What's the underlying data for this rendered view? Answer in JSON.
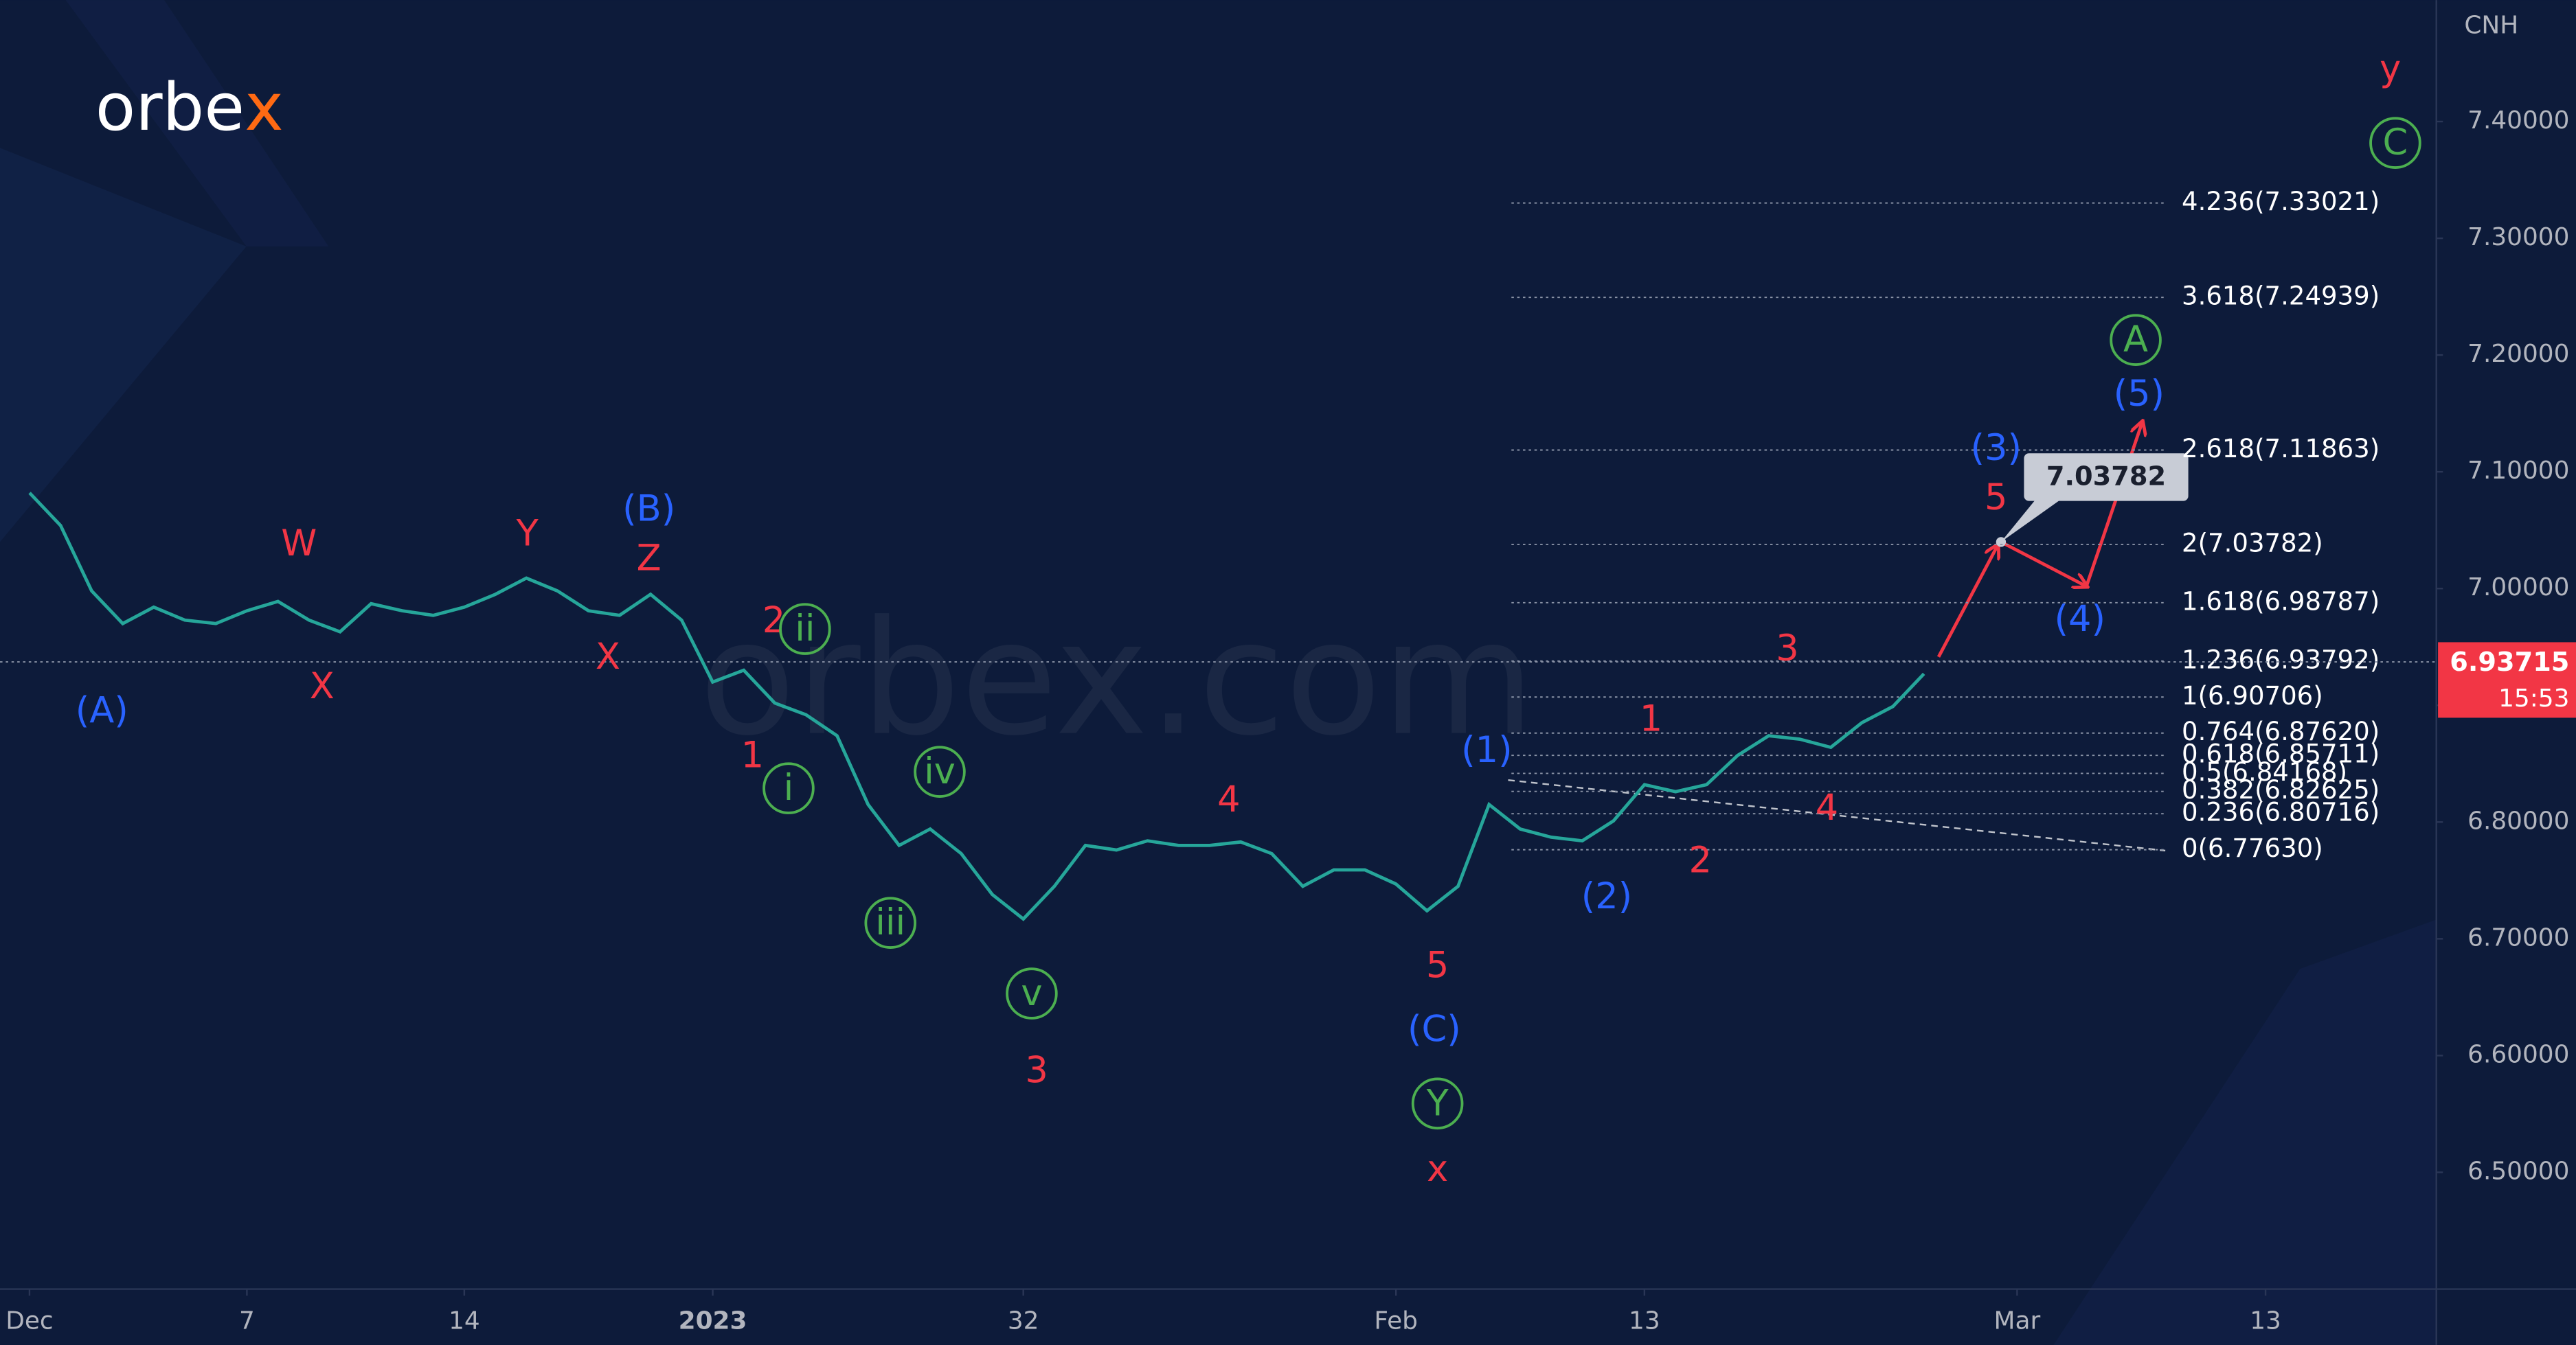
{
  "chart_data": {
    "type": "line",
    "logo": [
      "orbe",
      "x"
    ],
    "watermark": "orbex.com",
    "currency": "CNH",
    "color": "#26a69a",
    "x": [
      0,
      1,
      2,
      3,
      4,
      5,
      6,
      7,
      8,
      9,
      10,
      11,
      12,
      13,
      14,
      15,
      16,
      17,
      18,
      19,
      20,
      21,
      22,
      23,
      24,
      25,
      26,
      27,
      28,
      29,
      30,
      31,
      32,
      33,
      34,
      35,
      36,
      37,
      38,
      39,
      40,
      41,
      42,
      43,
      44,
      45,
      46,
      47,
      48,
      49,
      50,
      51,
      52,
      53,
      54,
      55,
      56,
      57,
      58,
      59,
      60,
      61
    ],
    "values": [
      7.082,
      7.054,
      6.998,
      6.97,
      6.984,
      6.973,
      6.97,
      6.981,
      6.989,
      6.973,
      6.963,
      6.987,
      6.981,
      6.977,
      6.984,
      6.995,
      7.009,
      6.998,
      6.981,
      6.977,
      6.995,
      6.973,
      6.92,
      6.93,
      6.902,
      6.892,
      6.874,
      6.815,
      6.78,
      6.794,
      6.773,
      6.738,
      6.717,
      6.745,
      6.78,
      6.776,
      6.784,
      6.78,
      6.78,
      6.783,
      6.773,
      6.745,
      6.759,
      6.759,
      6.747,
      6.724,
      6.745,
      6.815,
      6.794,
      6.787,
      6.784,
      6.801,
      6.832,
      6.826,
      6.832,
      6.857,
      6.874,
      6.871,
      6.864,
      6.885,
      6.899,
      6.927
    ],
    "xlim": [
      -0.95,
      77.5
    ],
    "xticks": [
      {
        "value": 0,
        "label": "Dec"
      },
      7,
      14,
      {
        "value": 22,
        "label": "2023"
      },
      32,
      {
        "value": 44,
        "label": "Feb"
      },
      {
        "value": 52,
        "label": "13"
      },
      {
        "value": 64,
        "label": "Mar"
      },
      {
        "value": 72,
        "label": "13"
      }
    ],
    "ylim": [
      6.4,
      7.504
    ],
    "yticks": [
      {
        "value": 6.5,
        "label": "6.50000"
      },
      {
        "value": 6.6,
        "label": "6.60000"
      },
      {
        "value": 6.7,
        "label": "6.70000"
      },
      {
        "value": 6.8,
        "label": "6.80000"
      },
      {
        "value": 6.9,
        "label": "6.90000"
      },
      {
        "value": 7.0,
        "label": "7.00000"
      },
      {
        "value": 7.1,
        "label": "7.10000"
      },
      {
        "value": 7.2,
        "label": "7.20000"
      },
      {
        "value": 7.3,
        "label": "7.30000"
      },
      {
        "value": 7.4,
        "label": "7.40000"
      }
    ],
    "last_price": 6.93715,
    "countdown": "15:53",
    "last_price_color": "#f23645",
    "target": 7.03782,
    "fib_levels": [
      {
        "label": "4.236(7.33021)",
        "value": 7.33021
      },
      {
        "label": "3.618(7.24939)",
        "value": 7.24939
      },
      {
        "label": "2.618(7.11863)",
        "value": 7.11863
      },
      {
        "label": "2(7.03782)",
        "value": 7.03782
      },
      {
        "label": "1.618(6.98787)",
        "value": 6.98787
      },
      {
        "label": "1.236(6.93792)",
        "value": 6.93792
      },
      {
        "label": "1(6.90706)",
        "value": 6.90706
      },
      {
        "label": "0.764(6.87620)",
        "value": 6.8762
      },
      {
        "label": "0.618(6.85711)",
        "value": 6.85711
      },
      {
        "label": "0.5(6.84168)",
        "value": 6.84168
      },
      {
        "label": "0.382(6.82625)",
        "value": 6.82625
      },
      {
        "label": "0.236(6.80716)",
        "value": 6.80716
      },
      {
        "label": "0(6.77630)",
        "value": 6.7763
      }
    ],
    "annotations": [
      {
        "text": "(A)",
        "color": "#2962ff",
        "circled": false
      },
      {
        "text": "W",
        "color": "#f23645",
        "circled": false
      },
      {
        "text": "X",
        "color": "#f23645",
        "circled": false
      },
      {
        "text": "Y",
        "color": "#f23645",
        "circled": false
      },
      {
        "text": "Z",
        "color": "#f23645",
        "circled": false
      },
      {
        "text": "(B)",
        "color": "#2962ff",
        "circled": false
      },
      {
        "text": "X",
        "color": "#f23645",
        "circled": false
      },
      {
        "text": "2",
        "color": "#f23645",
        "circled": false
      },
      {
        "text": "ii",
        "color": "#4caf50",
        "circled": true
      },
      {
        "text": "1",
        "color": "#f23645",
        "circled": false
      },
      {
        "text": "i",
        "color": "#4caf50",
        "circled": true
      },
      {
        "text": "iv",
        "color": "#4caf50",
        "circled": true
      },
      {
        "text": "iii",
        "color": "#4caf50",
        "circled": true
      },
      {
        "text": "v",
        "color": "#4caf50",
        "circled": true
      },
      {
        "text": "3",
        "color": "#f23645",
        "circled": false
      },
      {
        "text": "4",
        "color": "#f23645",
        "circled": false
      },
      {
        "text": "(1)",
        "color": "#2962ff",
        "circled": false
      },
      {
        "text": "5",
        "color": "#f23645",
        "circled": false
      },
      {
        "text": "(C)",
        "color": "#2962ff",
        "circled": false
      },
      {
        "text": "Y",
        "color": "#4caf50",
        "circled": true
      },
      {
        "text": "x",
        "color": "#f23645",
        "circled": false
      },
      {
        "text": "(2)",
        "color": "#2962ff",
        "circled": false
      },
      {
        "text": "2",
        "color": "#f23645",
        "circled": false
      },
      {
        "text": "1",
        "color": "#f23645",
        "circled": false
      },
      {
        "text": "4",
        "color": "#f23645",
        "circled": false
      },
      {
        "text": "3",
        "color": "#f23645",
        "circled": false
      },
      {
        "text": "(3)",
        "color": "#2962ff",
        "circled": false
      },
      {
        "text": "5",
        "color": "#f23645",
        "circled": false
      },
      {
        "text": "(4)",
        "color": "#2962ff",
        "circled": false
      },
      {
        "text": "(5)",
        "color": "#2962ff",
        "circled": false
      },
      {
        "text": "A",
        "color": "#4caf50",
        "circled": true
      },
      {
        "text": "C",
        "color": "#4caf50",
        "circled": true
      },
      {
        "text": "y",
        "color": "#f23645",
        "circled": false
      }
    ]
  }
}
